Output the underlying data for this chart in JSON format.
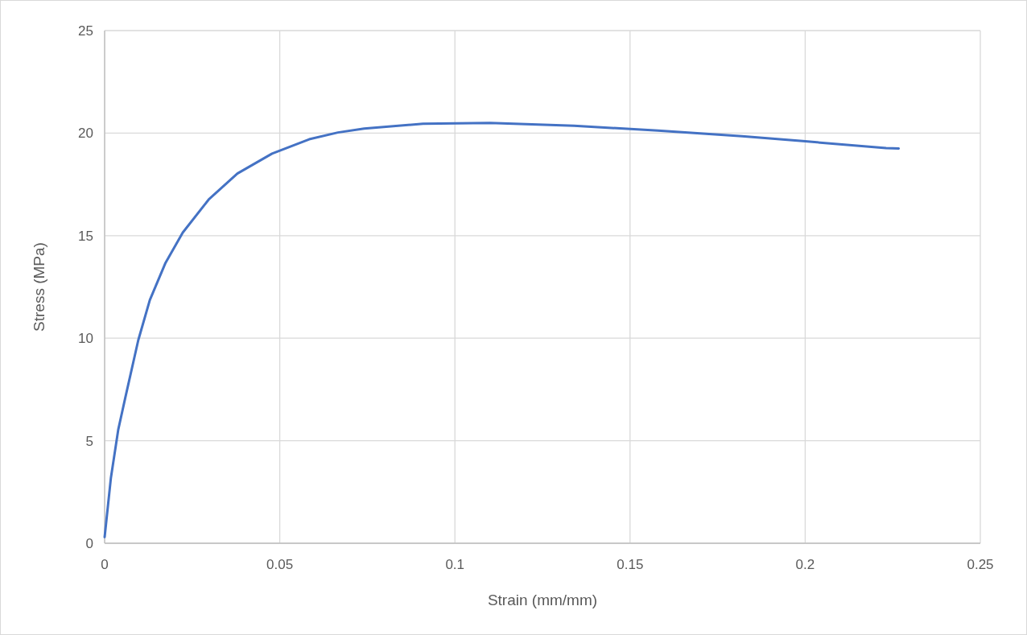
{
  "chart_data": {
    "type": "line",
    "xlabel": "Strain (mm/mm)",
    "ylabel": "Stress (MPa)",
    "xlim": [
      0,
      0.25
    ],
    "xticks": [
      0,
      0.05,
      0.1,
      0.15,
      0.2,
      0.25
    ],
    "ylim": [
      0,
      25
    ],
    "yticks": [
      0,
      5,
      10,
      15,
      20,
      25
    ],
    "grid": true,
    "marker": "none",
    "series": [
      {
        "color": "#4472c4",
        "x": [
          0,
          0.0018,
          0.0039,
          0.0059,
          0.0096,
          0.0129,
          0.0174,
          0.0223,
          0.0297,
          0.0379,
          0.0478,
          0.0584,
          0.0666,
          0.0741,
          0.0909,
          0.11,
          0.134,
          0.158,
          0.182,
          0.2,
          0.2231,
          0.2267
        ],
        "values": [
          0.3,
          3.2,
          5.55,
          7.1,
          9.9,
          11.86,
          13.68,
          15.15,
          16.76,
          18.03,
          19.0,
          19.7,
          20.03,
          20.22,
          20.46,
          20.5,
          20.36,
          20.12,
          19.85,
          19.6,
          19.27,
          19.25
        ]
      }
    ]
  }
}
